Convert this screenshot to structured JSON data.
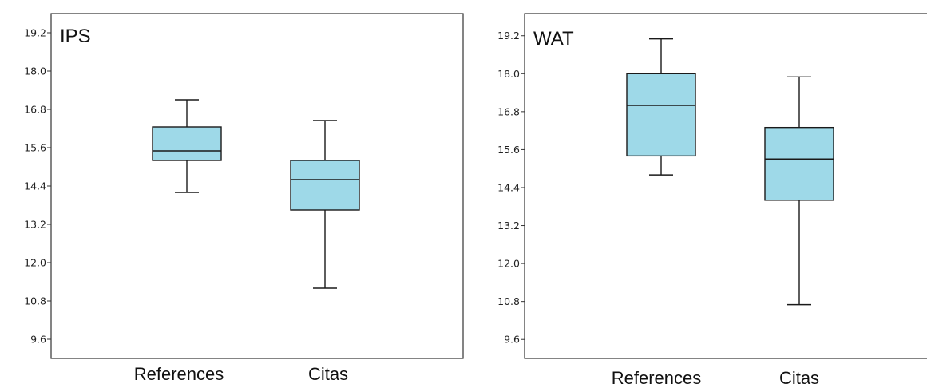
{
  "chart_data": [
    {
      "type": "box",
      "title": "IPS",
      "categories": [
        "References",
        "Citas"
      ],
      "y_ticks": [
        "9.6",
        "10.8",
        "12.0",
        "13.2",
        "14.4",
        "15.6",
        "16.8",
        "18.0",
        "19.2"
      ],
      "ylim": [
        9.0,
        19.8
      ],
      "boxes": [
        {
          "category": "References",
          "min": 14.2,
          "q1": 15.2,
          "median": 15.5,
          "q3": 16.25,
          "max": 17.1
        },
        {
          "category": "Citas",
          "min": 11.2,
          "q1": 13.65,
          "median": 14.6,
          "q3": 15.2,
          "max": 16.45
        }
      ],
      "box_color": "#9ed9e8",
      "grid": false
    },
    {
      "type": "box",
      "title": "WAT",
      "categories": [
        "References",
        "Citas"
      ],
      "y_ticks": [
        "9.6",
        "10.8",
        "12.0",
        "13.2",
        "14.4",
        "15.6",
        "16.8",
        "18.0",
        "19.2"
      ],
      "ylim": [
        9.0,
        19.9
      ],
      "boxes": [
        {
          "category": "References",
          "min": 14.8,
          "q1": 15.4,
          "median": 17.0,
          "q3": 18.0,
          "max": 19.1
        },
        {
          "category": "Citas",
          "min": 10.7,
          "q1": 14.0,
          "median": 15.3,
          "q3": 16.3,
          "max": 17.9
        }
      ],
      "box_color": "#9ed9e8",
      "grid": false
    }
  ]
}
